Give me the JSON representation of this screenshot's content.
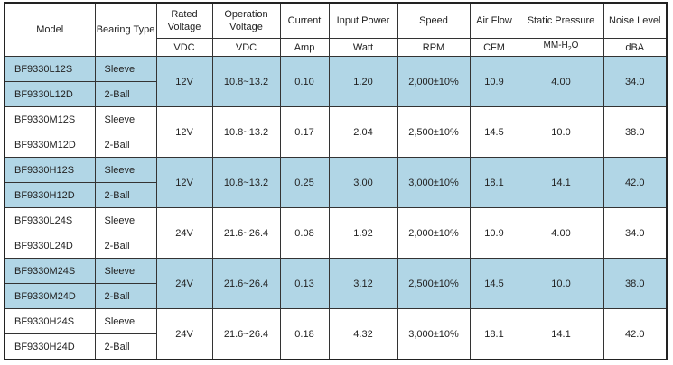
{
  "headers": {
    "model": "Model",
    "bearing": "Bearing Type",
    "rated": "Rated Voltage",
    "operation": "Operation Voltage",
    "current": "Current",
    "power": "Input Power",
    "speed": "Speed",
    "airflow": "Air Flow",
    "pressure": "Static Pressure",
    "noise": "Noise Level"
  },
  "units": {
    "rated": "VDC",
    "operation": "VDC",
    "current": "Amp",
    "power": "Watt",
    "speed": "RPM",
    "airflow": "CFM",
    "pressure_main": "MM-H",
    "pressure_sub": "2",
    "pressure_end": "O",
    "noise": "dBA"
  },
  "highlight_color": "#b1d6e6",
  "groups": [
    {
      "highlight": true,
      "models": [
        "BF9330L12S",
        "BF9330L12D"
      ],
      "bearings": [
        "Sleeve",
        "2-Ball"
      ],
      "rated": "12V",
      "operation": "10.8~13.2",
      "current": "0.10",
      "power": "1.20",
      "speed": "2,000±10%",
      "airflow": "10.9",
      "pressure": "4.00",
      "noise": "34.0"
    },
    {
      "highlight": false,
      "models": [
        "BF9330M12S",
        "BF9330M12D"
      ],
      "bearings": [
        "Sleeve",
        "2-Ball"
      ],
      "rated": "12V",
      "operation": "10.8~13.2",
      "current": "0.17",
      "power": "2.04",
      "speed": "2,500±10%",
      "airflow": "14.5",
      "pressure": "10.0",
      "noise": "38.0"
    },
    {
      "highlight": true,
      "models": [
        "BF9330H12S",
        "BF9330H12D"
      ],
      "bearings": [
        "Sleeve",
        "2-Ball"
      ],
      "rated": "12V",
      "operation": "10.8~13.2",
      "current": "0.25",
      "power": "3.00",
      "speed": "3,000±10%",
      "airflow": "18.1",
      "pressure": "14.1",
      "noise": "42.0"
    },
    {
      "highlight": false,
      "models": [
        "BF9330L24S",
        "BF9330L24D"
      ],
      "bearings": [
        "Sleeve",
        "2-Ball"
      ],
      "rated": "24V",
      "operation": "21.6~26.4",
      "current": "0.08",
      "power": "1.92",
      "speed": "2,000±10%",
      "airflow": "10.9",
      "pressure": "4.00",
      "noise": "34.0"
    },
    {
      "highlight": true,
      "models": [
        "BF9330M24S",
        "BF9330M24D"
      ],
      "bearings": [
        "Sleeve",
        "2-Ball"
      ],
      "rated": "24V",
      "operation": "21.6~26.4",
      "current": "0.13",
      "power": "3.12",
      "speed": "2,500±10%",
      "airflow": "14.5",
      "pressure": "10.0",
      "noise": "38.0"
    },
    {
      "highlight": false,
      "models": [
        "BF9330H24S",
        "BF9330H24D"
      ],
      "bearings": [
        "Sleeve",
        "2-Ball"
      ],
      "rated": "24V",
      "operation": "21.6~26.4",
      "current": "0.18",
      "power": "4.32",
      "speed": "3,000±10%",
      "airflow": "18.1",
      "pressure": "14.1",
      "noise": "42.0"
    }
  ]
}
